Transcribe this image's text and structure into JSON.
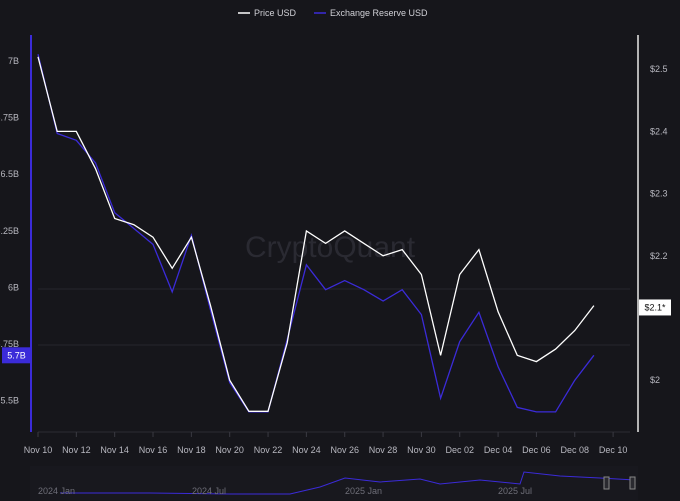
{
  "chart_data": {
    "type": "line",
    "watermark": "CryptoQuant",
    "x": [
      "Nov 10",
      "Nov 11",
      "Nov 12",
      "Nov 13",
      "Nov 14",
      "Nov 15",
      "Nov 16",
      "Nov 17",
      "Nov 18",
      "Nov 19",
      "Nov 20",
      "Nov 21",
      "Nov 22",
      "Nov 23",
      "Nov 24",
      "Nov 25",
      "Nov 26",
      "Nov 27",
      "Nov 28",
      "Nov 29",
      "Nov 30",
      "Dec 01",
      "Dec 02",
      "Dec 03",
      "Dec 04",
      "Dec 05",
      "Dec 06",
      "Dec 07",
      "Dec 08",
      "Dec 09"
    ],
    "x_ticks": [
      "Nov 10",
      "Nov 12",
      "Nov 14",
      "Nov 16",
      "Nov 18",
      "Nov 20",
      "Nov 22",
      "Nov 24",
      "Nov 26",
      "Nov 28",
      "Nov 30",
      "Dec 02",
      "Dec 04",
      "Dec 06",
      "Dec 08",
      "Dec 10"
    ],
    "series": [
      {
        "name": "Price USD",
        "axis": "right",
        "color": "#ffffff",
        "values": [
          2.52,
          2.4,
          2.4,
          2.34,
          2.26,
          2.25,
          2.23,
          2.18,
          2.23,
          2.12,
          2.0,
          1.95,
          1.95,
          2.06,
          2.24,
          2.22,
          2.24,
          2.22,
          2.2,
          2.21,
          2.17,
          2.04,
          2.17,
          2.21,
          2.11,
          2.04,
          2.03,
          2.05,
          2.08,
          2.12
        ]
      },
      {
        "name": "Exchange Reserve USD",
        "axis": "left",
        "color": "#3b2bd9",
        "values": [
          7.03,
          6.68,
          6.65,
          6.55,
          6.33,
          6.26,
          6.19,
          5.98,
          6.23,
          5.9,
          5.58,
          5.45,
          5.45,
          5.77,
          6.1,
          5.99,
          6.03,
          5.99,
          5.94,
          5.99,
          5.88,
          5.51,
          5.76,
          5.89,
          5.65,
          5.47,
          5.45,
          5.45,
          5.59,
          5.7
        ]
      }
    ],
    "left_axis": {
      "ticks": [
        "7B",
        "6.75B",
        "6.5B",
        "6.25B",
        "6B",
        "5.75B",
        "5.5B"
      ],
      "tick_values": [
        7,
        6.75,
        6.5,
        6.25,
        6,
        5.75,
        5.5
      ],
      "unit": "B",
      "ylim": [
        5.37,
        7.115
      ],
      "current_label": "5.7B",
      "current_value": 5.7
    },
    "right_axis": {
      "ticks": [
        "$2.5",
        "$2.4",
        "$2.3",
        "$2.2",
        "$2"
      ],
      "tick_values": [
        2.5,
        2.4,
        2.3,
        2.2,
        2.0
      ],
      "ylim": [
        1.92,
        2.555
      ],
      "current_label": "$2.1*",
      "current_value": 2.117
    },
    "legend": {
      "placement": "top-center",
      "items": [
        "Price USD",
        "Exchange Reserve USD"
      ]
    },
    "navigator": {
      "labels": [
        "2024 Jan",
        "2024 Jul",
        "2025 Jan",
        "2025 Jul"
      ]
    },
    "grid": false
  }
}
